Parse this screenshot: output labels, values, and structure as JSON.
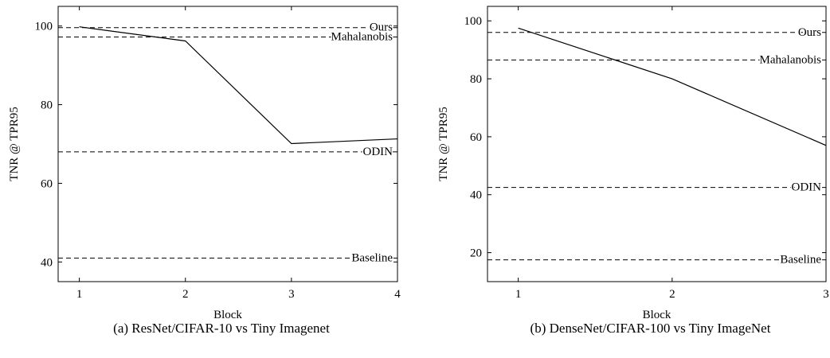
{
  "chart_data": [
    {
      "type": "line",
      "caption": "(a) ResNet/CIFAR-10 vs Tiny Imagenet",
      "xlabel": "Block",
      "ylabel": "TNR @ TPR95",
      "xlim": [
        0.8,
        4
      ],
      "ylim": [
        35,
        105
      ],
      "xticks": [
        1,
        2,
        3,
        4
      ],
      "yticks": [
        40,
        60,
        80,
        100
      ],
      "series": [
        {
          "x": [
            1,
            2,
            3,
            4
          ],
          "y": [
            99.8,
            96.2,
            70.1,
            71.3
          ]
        }
      ],
      "reference_lines": [
        {
          "name": "Ours",
          "y": 99.6
        },
        {
          "name": "Mahalanobis",
          "y": 97.2
        },
        {
          "name": "ODIN",
          "y": 68.0
        },
        {
          "name": "Baseline",
          "y": 41.0
        }
      ]
    },
    {
      "type": "line",
      "caption": "(b) DenseNet/CIFAR-100 vs Tiny ImageNet",
      "xlabel": "Block",
      "ylabel": "TNR @ TPR95",
      "xlim": [
        0.8,
        3
      ],
      "ylim": [
        10,
        105
      ],
      "xticks": [
        1,
        2,
        3
      ],
      "yticks": [
        20,
        40,
        60,
        80,
        100
      ],
      "series": [
        {
          "x": [
            1,
            2,
            3
          ],
          "y": [
            97.5,
            80.0,
            57.0
          ]
        }
      ],
      "reference_lines": [
        {
          "name": "Ours",
          "y": 96.0
        },
        {
          "name": "Mahalanobis",
          "y": 86.5
        },
        {
          "name": "ODIN",
          "y": 42.5
        },
        {
          "name": "Baseline",
          "y": 17.5
        }
      ]
    }
  ]
}
